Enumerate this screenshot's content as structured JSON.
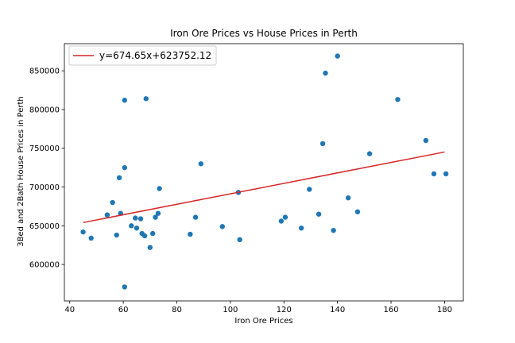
{
  "chart_data": {
    "type": "scatter",
    "title": "Iron Ore Prices vs House Prices in Perth",
    "xlabel": "Iron Ore Prices",
    "ylabel": "3Bed and 2Bath House Prices in Perth",
    "xlim": [
      38,
      187
    ],
    "ylim": [
      553000,
      885000
    ],
    "xticks": [
      40,
      60,
      80,
      100,
      120,
      140,
      160,
      180
    ],
    "yticks": [
      600000,
      650000,
      700000,
      750000,
      800000,
      850000
    ],
    "point_color": "#1f77b4",
    "fit_color": "#d62728",
    "legend": {
      "position": "top-left",
      "label": "y=674.65x+623752.12"
    },
    "fit": {
      "slope": 674.65,
      "intercept": 623752.12,
      "x_range": [
        45,
        180
      ]
    },
    "x": [
      45,
      48,
      54,
      56,
      57.5,
      58.5,
      59,
      60.5,
      60.5,
      60.5,
      63,
      64.5,
      65,
      66.5,
      67,
      68,
      68.5,
      70,
      71,
      72,
      73,
      73.5,
      85,
      87,
      89,
      97,
      103,
      103.5,
      119,
      120.5,
      126.5,
      129.5,
      133,
      134.5,
      135.5,
      138.5,
      140,
      144,
      147.5,
      152,
      162.5,
      173,
      176,
      180.5
    ],
    "y": [
      642000,
      634000,
      664000,
      680000,
      638000,
      712000,
      666000,
      812000,
      725000,
      571000,
      650000,
      660000,
      647000,
      659000,
      640000,
      637000,
      814000,
      622000,
      640000,
      661000,
      666000,
      698000,
      639000,
      661000,
      730000,
      649000,
      693000,
      632000,
      656000,
      661000,
      647000,
      697000,
      665000,
      756000,
      847000,
      644000,
      869000,
      686000,
      668000,
      743000,
      813000,
      760000,
      717000,
      717000
    ]
  }
}
